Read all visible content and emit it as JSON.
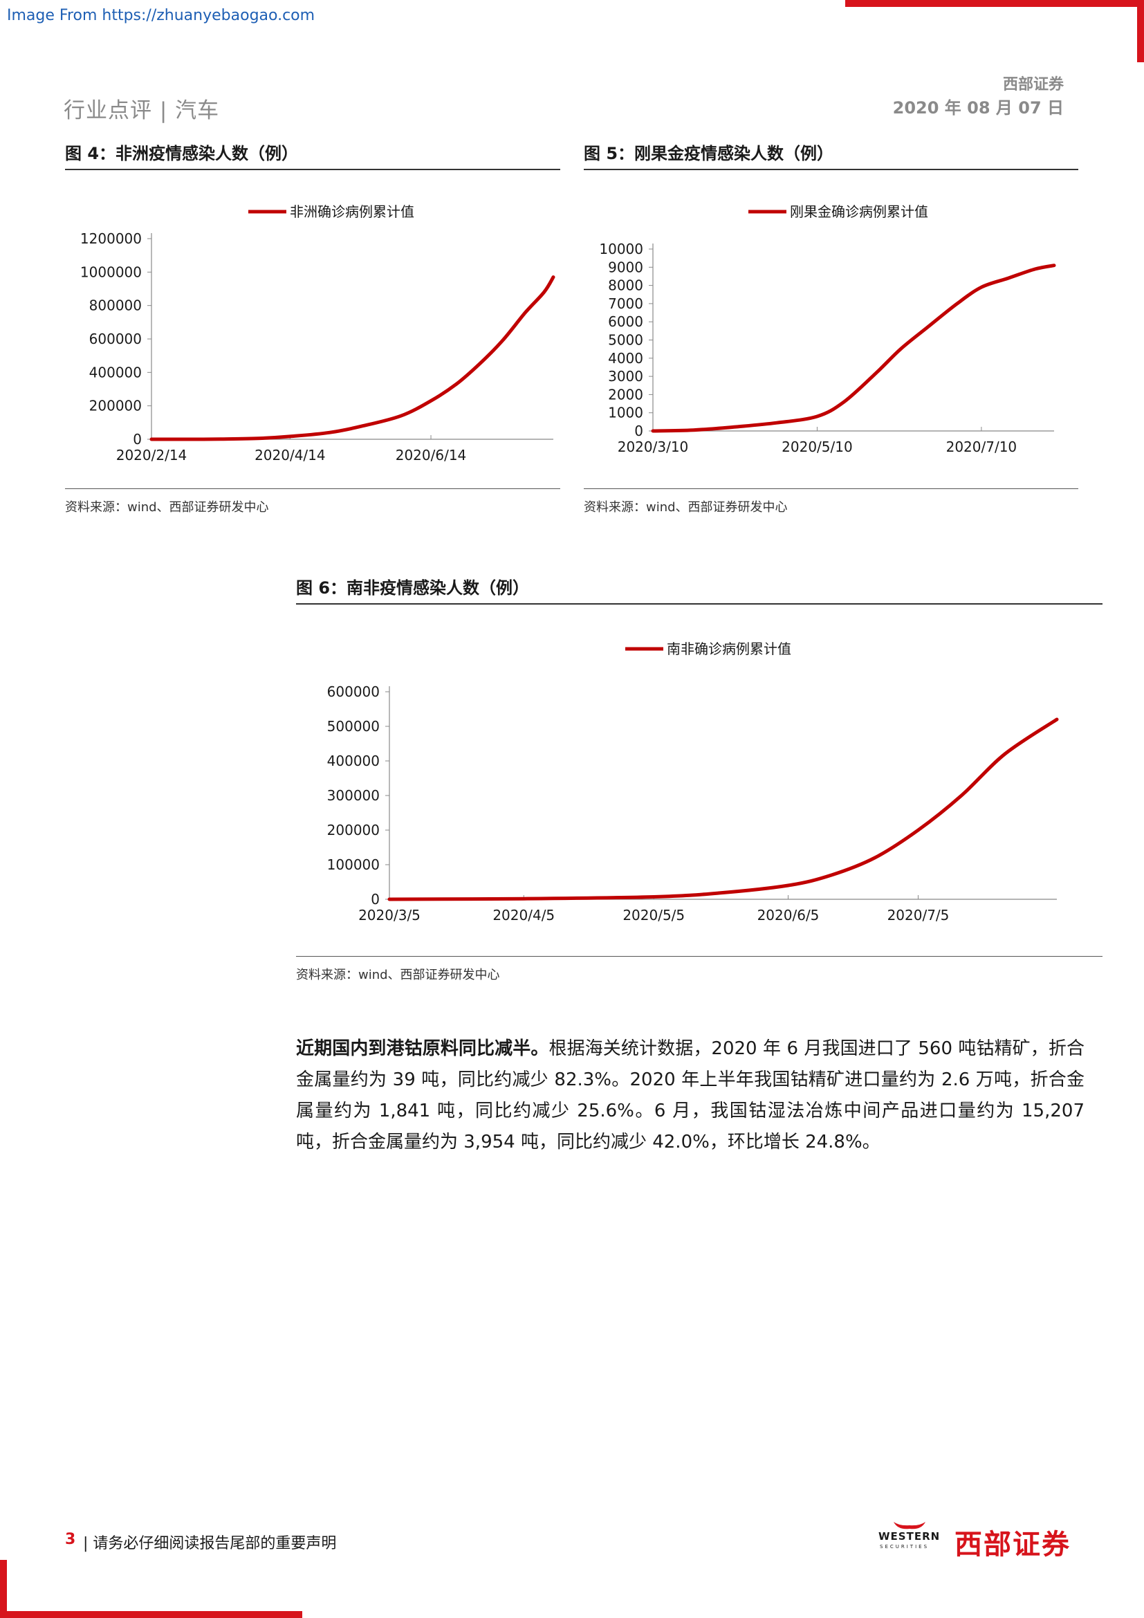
{
  "watermark": "Image From https://zhuanyebaogao.com",
  "header": {
    "section": "行业点评 | 汽车",
    "company": "西部证券",
    "date": "2020 年 08 月 07 日"
  },
  "figures": [
    {
      "title": "图 4：非洲疫情感染人数（例）",
      "source": "资料来源：wind、西部证券研发中心"
    },
    {
      "title": "图 5：刚果金疫情感染人数（例）",
      "source": "资料来源：wind、西部证券研发中心"
    },
    {
      "title": "图 6：南非疫情感染人数（例）",
      "source": "资料来源：wind、西部证券研发中心"
    }
  ],
  "chart_data": [
    {
      "type": "line",
      "legend_position": "top-center",
      "series": [
        {
          "name": "非洲确诊病例累计值",
          "color": "#c00000"
        }
      ],
      "x_ticks": [
        "2020/2/14",
        "2020/4/14",
        "2020/6/14"
      ],
      "x": [
        "2020/2/14",
        "2020/3/1",
        "2020/3/15",
        "2020/4/1",
        "2020/4/14",
        "2020/5/1",
        "2020/5/15",
        "2020/6/1",
        "2020/6/14",
        "2020/6/25",
        "2020/7/5",
        "2020/7/15",
        "2020/7/25",
        "2020/8/2",
        "2020/8/6"
      ],
      "y": [
        0,
        100,
        1000,
        6000,
        17000,
        40000,
        78000,
        140000,
        230000,
        330000,
        450000,
        590000,
        760000,
        880000,
        970000
      ],
      "y_ticks": [
        "0",
        "200000",
        "400000",
        "600000",
        "800000",
        "1000000",
        "1200000"
      ],
      "ylim": [
        0,
        1200000
      ],
      "grid": false
    },
    {
      "type": "line",
      "legend_position": "top-center",
      "series": [
        {
          "name": "刚果金确诊病例累计值",
          "color": "#c00000"
        }
      ],
      "x_ticks": [
        "2020/3/10",
        "2020/5/10",
        "2020/7/10"
      ],
      "x": [
        "2020/3/10",
        "2020/3/25",
        "2020/4/10",
        "2020/4/25",
        "2020/5/10",
        "2020/5/20",
        "2020/6/1",
        "2020/6/10",
        "2020/6/20",
        "2020/7/1",
        "2020/7/10",
        "2020/7/20",
        "2020/7/30",
        "2020/8/6"
      ],
      "y": [
        0,
        50,
        230,
        450,
        800,
        1600,
        3200,
        4500,
        5700,
        7000,
        7900,
        8400,
        8900,
        9100
      ],
      "y_ticks": [
        "0",
        "1000",
        "2000",
        "3000",
        "4000",
        "5000",
        "6000",
        "7000",
        "8000",
        "9000",
        "10000"
      ],
      "ylim": [
        0,
        10000
      ],
      "grid": false
    },
    {
      "type": "line",
      "legend_position": "top-center",
      "series": [
        {
          "name": "南非确诊病例累计值",
          "color": "#c00000"
        }
      ],
      "x_ticks": [
        "2020/3/5",
        "2020/4/5",
        "2020/5/5",
        "2020/6/5",
        "2020/7/5"
      ],
      "x": [
        "2020/3/5",
        "2020/4/5",
        "2020/5/5",
        "2020/5/20",
        "2020/6/5",
        "2020/6/15",
        "2020/6/25",
        "2020/7/5",
        "2020/7/15",
        "2020/7/25",
        "2020/8/6"
      ],
      "y": [
        0,
        1600,
        7000,
        18000,
        40000,
        70000,
        120000,
        200000,
        300000,
        420000,
        520000
      ],
      "y_ticks": [
        "0",
        "100000",
        "200000",
        "300000",
        "400000",
        "500000",
        "600000"
      ],
      "ylim": [
        0,
        600000
      ],
      "grid": false
    }
  ],
  "paragraph": {
    "lead": "近期国内到港钴原料同比减半。",
    "body": "根据海关统计数据，2020 年 6 月我国进口了 560 吨钴精矿，折合金属量约为 39 吨，同比约减少 82.3%。2020 年上半年我国钴精矿进口量约为 2.6 万吨，折合金属量约为 1,841 吨，同比约减少 25.6%。6 月，我国钴湿法冶炼中间产品进口量约为 15,207 吨，折合金属量约为 3,954 吨，同比约减少 42.0%，环比增长 24.8%。"
  },
  "footer": {
    "page_number": "3",
    "notice": "| 请务必仔细阅读报告尾部的重要声明",
    "logo_en": "WESTERN",
    "logo_en_sub": "SECURITIES",
    "logo_cn": "西部证券"
  }
}
